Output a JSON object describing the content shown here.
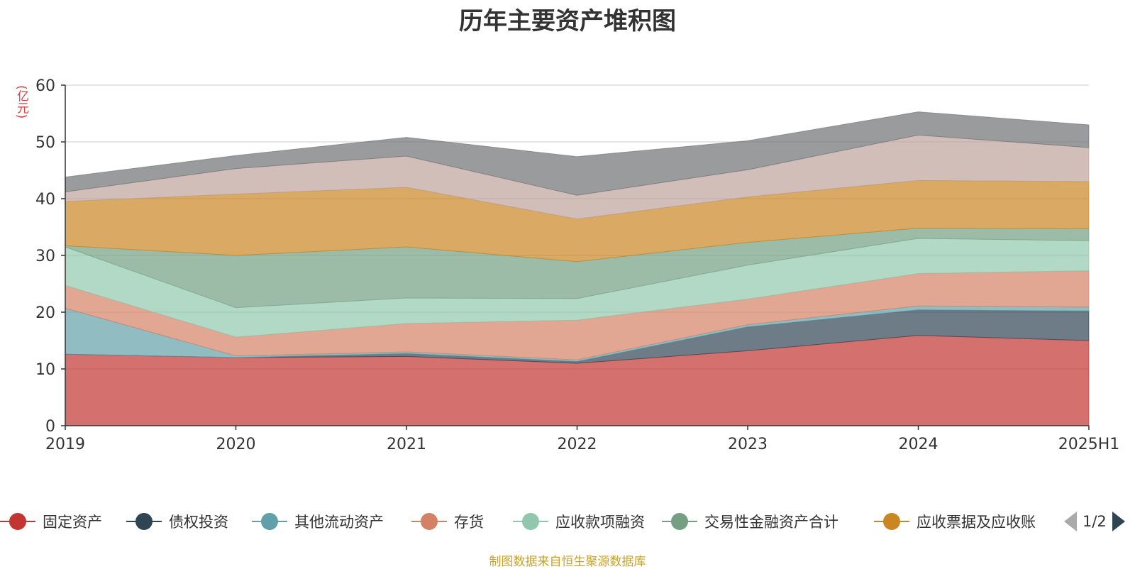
{
  "chart_data": {
    "type": "area",
    "stacked": true,
    "title": "历年主要资产堆积图",
    "unit_label": "(亿元)",
    "categories": [
      "2019",
      "2020",
      "2021",
      "2022",
      "2023",
      "2024",
      "2025H1"
    ],
    "y_ticks": [
      "0",
      "10",
      "20",
      "30",
      "40",
      "50",
      "60"
    ],
    "ylim": [
      0,
      60
    ],
    "grid": true,
    "series": [
      {
        "name": "固定资产",
        "color": "#c23531",
        "values": [
          12.6,
          12.0,
          12.2,
          11.0,
          13.2,
          15.9,
          15.0
        ]
      },
      {
        "name": "债权投资",
        "color": "#2f4554",
        "values": [
          0.0,
          0.0,
          0.5,
          0.3,
          4.2,
          4.5,
          5.2
        ]
      },
      {
        "name": "其他流动资产",
        "color": "#61a0a8",
        "values": [
          8.1,
          0.3,
          0.3,
          0.3,
          0.4,
          0.7,
          0.7
        ]
      },
      {
        "name": "存货",
        "color": "#d48265",
        "values": [
          4.0,
          3.3,
          5.0,
          7.0,
          4.5,
          5.7,
          6.4
        ]
      },
      {
        "name": "应收款项融资",
        "color": "#91c7ae",
        "values": [
          6.8,
          5.2,
          4.5,
          3.8,
          6.0,
          6.2,
          5.3
        ]
      },
      {
        "name": "交易性金融资产合计",
        "color": "#749f83",
        "values": [
          0.2,
          9.2,
          9.0,
          6.5,
          4.0,
          1.8,
          2.1
        ]
      },
      {
        "name": "应收票据及应收账",
        "color": "#ca8622",
        "values": [
          7.8,
          10.8,
          10.5,
          7.5,
          8.0,
          8.4,
          8.3
        ]
      },
      {
        "name": "",
        "color": "#bda29a",
        "values": [
          1.7,
          4.5,
          5.5,
          4.2,
          4.8,
          8.0,
          6.0
        ]
      },
      {
        "name": "",
        "color": "#6e7074",
        "values": [
          2.6,
          2.3,
          3.3,
          6.8,
          5.1,
          4.1,
          4.0
        ]
      }
    ]
  },
  "legend_page": "1/2",
  "source_text": "制图数据来自恒生聚源数据库"
}
